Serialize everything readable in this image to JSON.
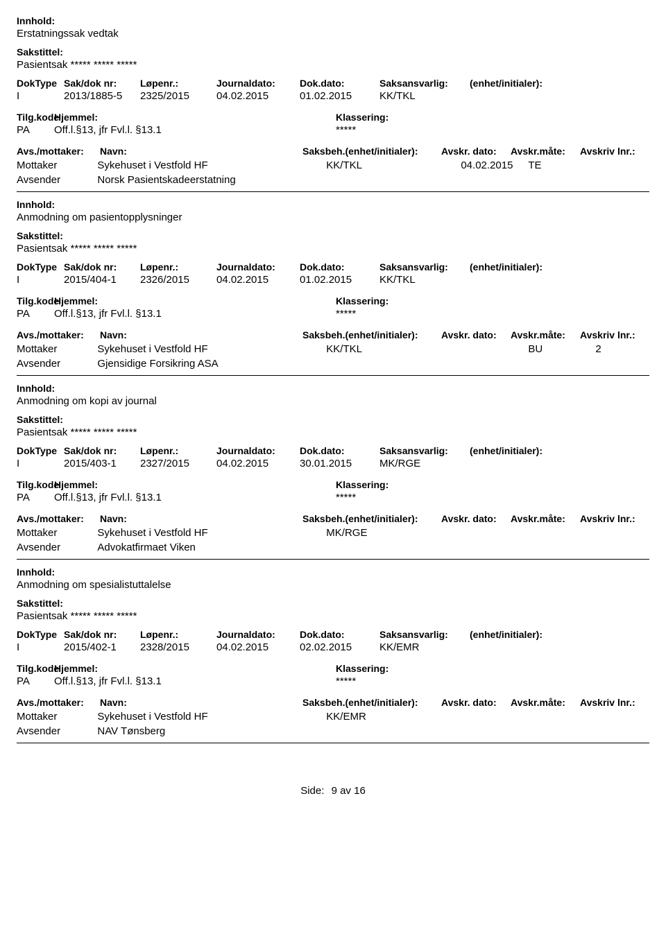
{
  "labels": {
    "innhold": "Innhold:",
    "sakstittel": "Sakstittel:",
    "doktype": "DokType",
    "sakdoknr": "Sak/dok nr:",
    "lopenr": "Løpenr.:",
    "journaldato": "Journaldato:",
    "dokdato": "Dok.dato:",
    "saksansvarlig": "Saksansvarlig:",
    "enhet_initialer": "(enhet/initialer):",
    "tilgkode": "Tilg.kode",
    "hjemmel": "Hjemmel:",
    "klassering": "Klassering:",
    "avs_mottaker": "Avs./mottaker:",
    "navn": "Navn:",
    "saksbeh": "Saksbeh.(enhet/initialer):",
    "avskr_dato": "Avskr. dato:",
    "avskr_mate": "Avskr.måte:",
    "avskriv_lnr": "Avskriv lnr.:",
    "mottaker": "Mottaker",
    "avsender": "Avsender",
    "side": "Side:",
    "av": "av"
  },
  "footer": {
    "page": "9",
    "total": "16"
  },
  "records": [
    {
      "innhold": "Erstatningssak vedtak",
      "sakstittel": "Pasientsak ***** ***** *****",
      "doktype": "I",
      "sakdoknr": "2013/1885-5",
      "lopenr": "2325/2015",
      "journaldato": "04.02.2015",
      "dokdato": "01.02.2015",
      "saksansvarlig": "KK/TKL",
      "tilgkode": "PA",
      "hjemmel": "Off.l.§13, jfr Fvl.l. §13.1",
      "klassering": "*****",
      "parties": [
        {
          "role": "Mottaker",
          "name": "Sykehuset i Vestfold HF",
          "sb": "KK/TKL",
          "ad": "04.02.2015",
          "am": "TE",
          "al": ""
        },
        {
          "role": "Avsender",
          "name": "Norsk Pasientskadeerstatning",
          "sb": "",
          "ad": "",
          "am": "",
          "al": ""
        }
      ]
    },
    {
      "innhold": "Anmodning om pasientopplysninger",
      "sakstittel": "Pasientsak ***** ***** *****",
      "doktype": "I",
      "sakdoknr": "2015/404-1",
      "lopenr": "2326/2015",
      "journaldato": "04.02.2015",
      "dokdato": "01.02.2015",
      "saksansvarlig": "KK/TKL",
      "tilgkode": "PA",
      "hjemmel": "Off.l.§13, jfr Fvl.l. §13.1",
      "klassering": "*****",
      "parties": [
        {
          "role": "Mottaker",
          "name": "Sykehuset i Vestfold HF",
          "sb": "KK/TKL",
          "ad": "",
          "am": "BU",
          "al": "2"
        },
        {
          "role": "Avsender",
          "name": "Gjensidige Forsikring ASA",
          "sb": "",
          "ad": "",
          "am": "",
          "al": ""
        }
      ]
    },
    {
      "innhold": "Anmodning om kopi av journal",
      "sakstittel": "Pasientsak ***** ***** *****",
      "doktype": "I",
      "sakdoknr": "2015/403-1",
      "lopenr": "2327/2015",
      "journaldato": "04.02.2015",
      "dokdato": "30.01.2015",
      "saksansvarlig": "MK/RGE",
      "tilgkode": "PA",
      "hjemmel": "Off.l.§13, jfr Fvl.l. §13.1",
      "klassering": "*****",
      "parties": [
        {
          "role": "Mottaker",
          "name": "Sykehuset i Vestfold HF",
          "sb": "MK/RGE",
          "ad": "",
          "am": "",
          "al": ""
        },
        {
          "role": "Avsender",
          "name": "Advokatfirmaet Viken",
          "sb": "",
          "ad": "",
          "am": "",
          "al": ""
        }
      ]
    },
    {
      "innhold": "Anmodning om spesialistuttalelse",
      "sakstittel": "Pasientsak ***** ***** *****",
      "doktype": "I",
      "sakdoknr": "2015/402-1",
      "lopenr": "2328/2015",
      "journaldato": "04.02.2015",
      "dokdato": "02.02.2015",
      "saksansvarlig": "KK/EMR",
      "tilgkode": "PA",
      "hjemmel": "Off.l.§13, jfr Fvl.l. §13.1",
      "klassering": "*****",
      "parties": [
        {
          "role": "Mottaker",
          "name": "Sykehuset i Vestfold HF",
          "sb": "KK/EMR",
          "ad": "",
          "am": "",
          "al": ""
        },
        {
          "role": "Avsender",
          "name": "NAV Tønsberg",
          "sb": "",
          "ad": "",
          "am": "",
          "al": ""
        }
      ]
    }
  ]
}
